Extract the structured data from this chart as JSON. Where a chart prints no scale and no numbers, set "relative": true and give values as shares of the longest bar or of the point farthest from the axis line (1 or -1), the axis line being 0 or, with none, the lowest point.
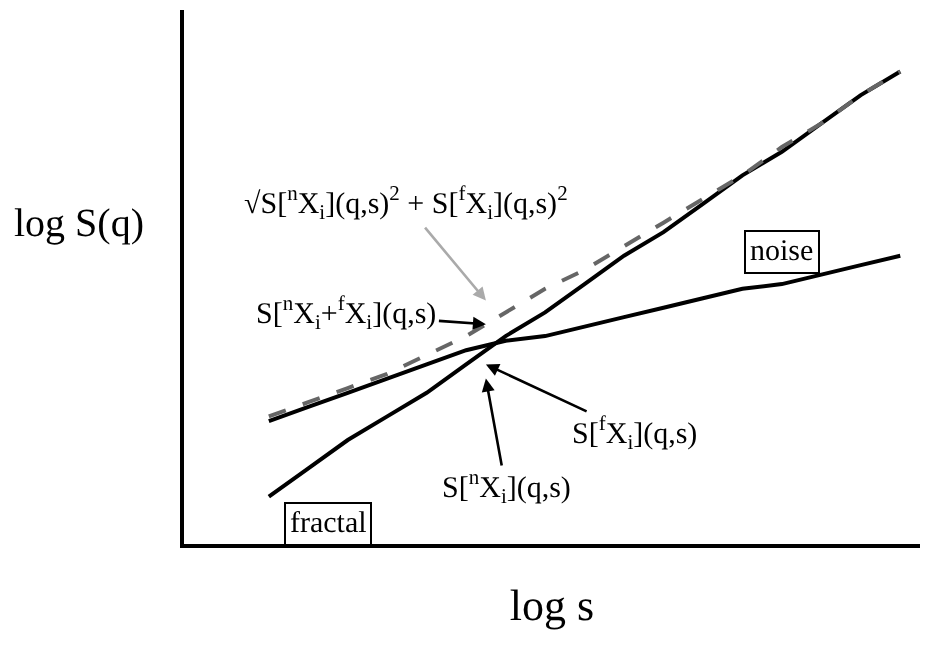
{
  "chart_data": {
    "type": "line",
    "relative": true,
    "xlabel": "log s",
    "ylabel": "log S(q)",
    "legend": false,
    "tick_labels": false,
    "marker": "none",
    "categories": [
      null,
      null,
      null,
      null,
      null,
      null,
      null,
      null,
      null,
      null,
      null,
      null,
      null,
      null,
      null,
      null,
      null
    ],
    "series": [
      {
        "name": "fractal",
        "color": "#000000",
        "line_style": "solid",
        "values": [
          0.1,
          0.16,
          0.22,
          0.27,
          0.32,
          0.38,
          0.44,
          0.49,
          0.55,
          0.61,
          0.66,
          0.72,
          0.78,
          0.83,
          0.89,
          0.95,
          1.0
        ]
      },
      {
        "name": "noise",
        "color": "#000000",
        "line_style": "solid",
        "values": [
          0.26,
          0.29,
          0.32,
          0.35,
          0.38,
          0.41,
          0.43,
          0.44,
          0.46,
          0.48,
          0.5,
          0.52,
          0.54,
          0.55,
          0.57,
          0.59,
          0.61
        ]
      },
      {
        "color": "#666666",
        "line_style": "dashed",
        "values": [
          0.27,
          0.3,
          0.33,
          0.36,
          0.4,
          0.44,
          0.49,
          0.54,
          0.58,
          0.63,
          0.68,
          0.73,
          0.78,
          0.84,
          0.89,
          0.95,
          1.0
        ]
      }
    ],
    "annotations": [
      "√S[$^{n}$X$_{i}$](q,s)$^{2}$ + S[$^{f}$X$_{i}$](q,s)$^{2}$",
      "S[$^{n}$X$_{i}$+$^{f}$X$_{i}$](q,s)",
      "S[$^{f}$X$_{i}$](q,s)",
      "S[$^{n}$X$_{i}$](q,s)"
    ]
  }
}
